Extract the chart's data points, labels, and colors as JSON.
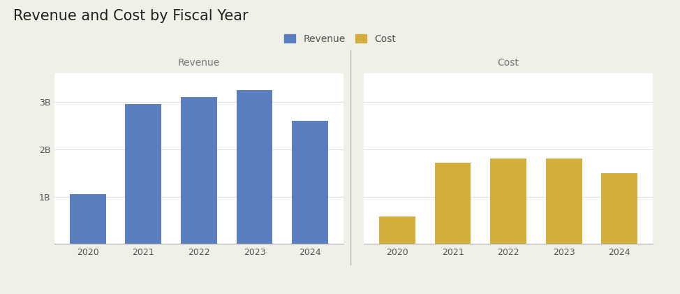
{
  "title": "Revenue and Cost by Fiscal Year",
  "title_fontsize": 15,
  "background_color": "#f0efe8",
  "panel_background": "#ffffff",
  "years": [
    2020,
    2021,
    2022,
    2023,
    2024
  ],
  "revenue_values": [
    1050000000,
    2950000000,
    3100000000,
    3250000000,
    2600000000
  ],
  "cost_values": [
    580000000,
    1720000000,
    1800000000,
    1810000000,
    1500000000
  ],
  "revenue_color": "#5b7fbe",
  "cost_color": "#d4ae3a",
  "panel_title_revenue": "Revenue",
  "panel_title_cost": "Cost",
  "legend_revenue": "Revenue",
  "legend_cost": "Cost",
  "ytick_labels": [
    "1B",
    "2B",
    "3B"
  ],
  "ytick_values": [
    1000000000,
    2000000000,
    3000000000
  ],
  "ylim": [
    0,
    3600000000
  ],
  "divider_color": "#bbbbbb",
  "grid_color": "#e0e0e0",
  "panel_title_fontsize": 10,
  "axis_tick_fontsize": 9,
  "legend_fontsize": 10
}
